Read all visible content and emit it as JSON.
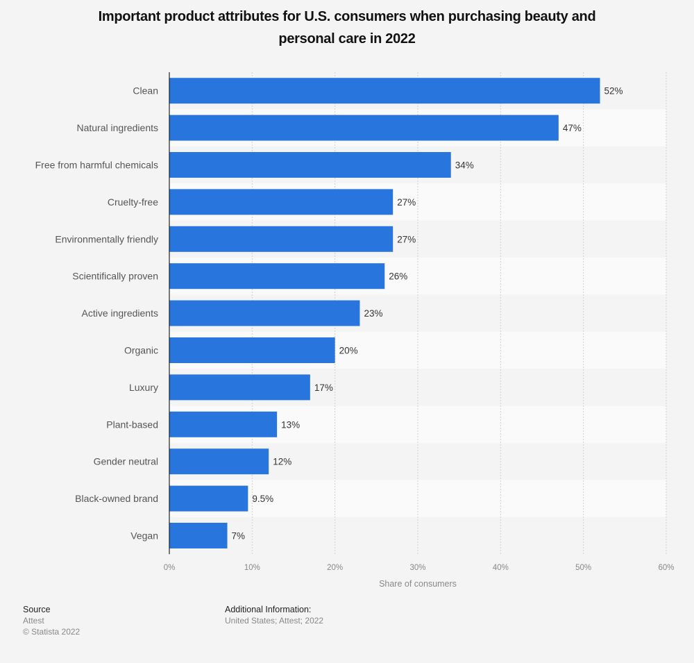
{
  "chart_data": {
    "type": "bar",
    "orientation": "horizontal",
    "title": "Important product attributes for U.S. consumers when purchasing beauty and personal care in 2022",
    "title_lines": [
      "Important product attributes for U.S. consumers when purchasing beauty and",
      "personal care in 2022"
    ],
    "categories": [
      "Clean",
      "Natural ingredients",
      "Free from harmful chemicals",
      "Cruelty-free",
      "Environmentally friendly",
      "Scientifically proven",
      "Active ingredients",
      "Organic",
      "Luxury",
      "Plant-based",
      "Gender neutral",
      "Black-owned brand",
      "Vegan"
    ],
    "values": [
      52,
      47,
      34,
      27,
      27,
      26,
      23,
      20,
      17,
      13,
      12,
      9.5,
      7
    ],
    "value_labels": [
      "52%",
      "47%",
      "34%",
      "27%",
      "27%",
      "26%",
      "23%",
      "20%",
      "17%",
      "13%",
      "12%",
      "9.5%",
      "7%"
    ],
    "xlabel": "Share of consumers",
    "ylabel": "",
    "xlim": [
      0,
      60
    ],
    "xticks": [
      0,
      10,
      20,
      30,
      40,
      50,
      60
    ],
    "xtick_labels": [
      "0%",
      "10%",
      "20%",
      "30%",
      "40%",
      "50%",
      "60%"
    ],
    "grid": true,
    "legend": "none",
    "colors": {
      "bar": "#2876dd",
      "row_a": "#f4f4f4",
      "row_b": "#fafafa"
    }
  },
  "footer": {
    "source_heading": "Source",
    "source_value": "Attest",
    "copyright": "© Statista 2022",
    "additional_heading": "Additional Information:",
    "additional_value": "United States; Attest; 2022"
  }
}
